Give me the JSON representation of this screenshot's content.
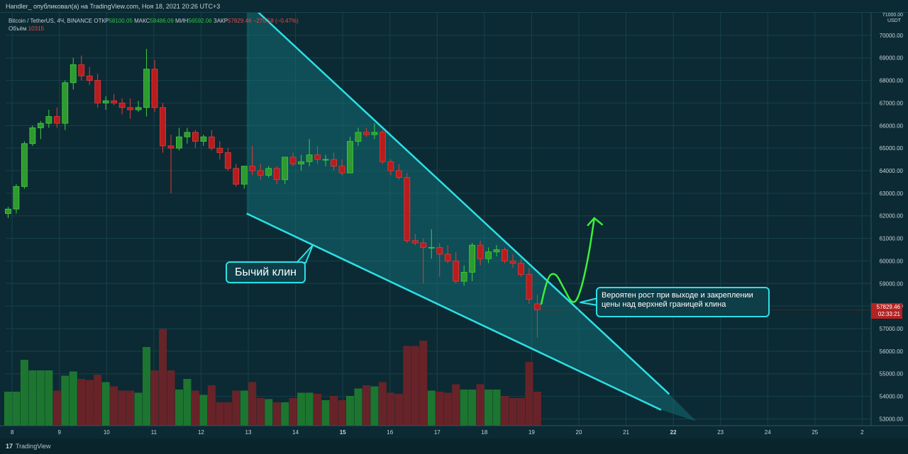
{
  "header": {
    "author_line": "Handler_ опубликовал(а) на TradingView.com, Ноя 18, 2021 20:26 UTC+3"
  },
  "legend": {
    "symbol": "Bitcoin / TetherUS, 4Ч, BINANCE",
    "open_label": "ОТКР",
    "open_value": "58100.05",
    "high_label": "МАКС",
    "high_value": "58486.09",
    "low_label": "МИН",
    "low_value": "56592.06",
    "close_label": "ЗАКР",
    "close_value": "57829.46",
    "change_value": "−270.58 (−0.47%)",
    "volume_label": "Объём",
    "volume_value": "10315"
  },
  "annotations": {
    "wedge_label": "Бычий клин",
    "note_line1": "Вероятен рост при выходе и закреплении",
    "note_line2": "цены над верхней границей клина"
  },
  "price_tag": {
    "price": "57829.46",
    "countdown": "02:33:21"
  },
  "footer": {
    "brand": "TradingView"
  },
  "colors": {
    "background": "#0c2a33",
    "bull": "#2f9a2f",
    "bear": "#b81d1d",
    "wedge_lines": "#2ce0e6",
    "wedge_fill": "#157a80",
    "projection": "#3cf03c"
  },
  "chart_data": {
    "type": "candlestick",
    "title": "Bitcoin / TetherUS, 4Ч, BINANCE",
    "currency_label_top": "71000.00",
    "currency_label_unit": "USDT",
    "y_ticks": [
      70000,
      69000,
      68000,
      67000,
      66000,
      65000,
      64000,
      63000,
      62000,
      61000,
      60000,
      59000,
      58000,
      57000,
      56000,
      55000,
      54000,
      53000
    ],
    "ylim": [
      52700,
      71000
    ],
    "x_ticks": [
      {
        "label": "8",
        "t": 0.5
      },
      {
        "label": "9",
        "t": 6.3
      },
      {
        "label": "10",
        "t": 12.1
      },
      {
        "label": "11",
        "t": 17.9
      },
      {
        "label": "12",
        "t": 23.7
      },
      {
        "label": "13",
        "t": 29.5
      },
      {
        "label": "14",
        "t": 35.3
      },
      {
        "label": "15",
        "t": 41.1
      },
      {
        "label": "16",
        "t": 46.9
      },
      {
        "label": "17",
        "t": 52.7
      },
      {
        "label": "18",
        "t": 58.5
      },
      {
        "label": "19",
        "t": 64.3
      },
      {
        "label": "20",
        "t": 70.1
      },
      {
        "label": "21",
        "t": 75.9
      },
      {
        "label": "22",
        "t": 81.7
      },
      {
        "label": "23",
        "t": 87.5
      },
      {
        "label": "24",
        "t": 93.3
      },
      {
        "label": "25",
        "t": 99.1
      },
      {
        "label": "2",
        "t": 104.9
      }
    ],
    "xlim": [
      -0.3,
      106
    ],
    "candles": [
      [
        62100,
        62400,
        61900,
        62300
      ],
      [
        62300,
        63400,
        62100,
        63300
      ],
      [
        63300,
        65300,
        63200,
        65200
      ],
      [
        65200,
        66000,
        65100,
        65900
      ],
      [
        65900,
        66200,
        65400,
        66100
      ],
      [
        66100,
        66700,
        65900,
        66400
      ],
      [
        66400,
        66800,
        65900,
        66100
      ],
      [
        66100,
        68000,
        65800,
        67900
      ],
      [
        67900,
        69000,
        67600,
        68700
      ],
      [
        68700,
        69100,
        68000,
        68200
      ],
      [
        68200,
        68600,
        67800,
        68000
      ],
      [
        68000,
        68300,
        66800,
        67000
      ],
      [
        67000,
        67300,
        66700,
        67100
      ],
      [
        67100,
        67400,
        66900,
        67000
      ],
      [
        67000,
        67200,
        66500,
        66800
      ],
      [
        66800,
        67200,
        66300,
        66700
      ],
      [
        66700,
        67100,
        66600,
        66800
      ],
      [
        66800,
        69400,
        66400,
        68500
      ],
      [
        68500,
        68900,
        66600,
        66800
      ],
      [
        66800,
        67000,
        64800,
        65100
      ],
      [
        65100,
        65600,
        63000,
        65000
      ],
      [
        65000,
        65900,
        64900,
        65500
      ],
      [
        65500,
        65900,
        65200,
        65700
      ],
      [
        65700,
        65800,
        65000,
        65300
      ],
      [
        65300,
        65600,
        65100,
        65500
      ],
      [
        65500,
        65800,
        64900,
        65000
      ],
      [
        65000,
        65300,
        64500,
        64800
      ],
      [
        64800,
        65000,
        64000,
        64100
      ],
      [
        64100,
        64300,
        63300,
        63400
      ],
      [
        63400,
        64200,
        63200,
        64200
      ],
      [
        64200,
        65100,
        63800,
        64000
      ],
      [
        64000,
        64300,
        63600,
        63800
      ],
      [
        63800,
        64200,
        63700,
        64100
      ],
      [
        64100,
        64200,
        63400,
        63600
      ],
      [
        63600,
        64500,
        63400,
        64600
      ],
      [
        64600,
        64800,
        64200,
        64300
      ],
      [
        64300,
        64700,
        64000,
        64400
      ],
      [
        64400,
        65400,
        64200,
        64700
      ],
      [
        64700,
        65100,
        64300,
        64500
      ],
      [
        64500,
        64700,
        64200,
        64500
      ],
      [
        64500,
        64800,
        64000,
        64200
      ],
      [
        64200,
        64500,
        63800,
        63900
      ],
      [
        63900,
        65500,
        63900,
        65300
      ],
      [
        65300,
        65900,
        65100,
        65700
      ],
      [
        65700,
        65900,
        65500,
        65600
      ],
      [
        65600,
        66100,
        65400,
        65700
      ],
      [
        65700,
        65800,
        64300,
        64400
      ],
      [
        64400,
        64500,
        63800,
        64000
      ],
      [
        64000,
        64300,
        63600,
        63700
      ],
      [
        63700,
        63900,
        60800,
        60900
      ],
      [
        60900,
        61200,
        60700,
        60800
      ],
      [
        60800,
        61000,
        59000,
        60600
      ],
      [
        60600,
        61400,
        60100,
        60600
      ],
      [
        60600,
        60800,
        59300,
        60300
      ],
      [
        60300,
        60700,
        59900,
        60000
      ],
      [
        60000,
        60400,
        59000,
        59100
      ],
      [
        59100,
        59800,
        58900,
        59500
      ],
      [
        59500,
        60800,
        59100,
        60700
      ],
      [
        60700,
        60900,
        59800,
        60100
      ],
      [
        60100,
        60600,
        59900,
        60400
      ],
      [
        60400,
        60700,
        60200,
        60500
      ],
      [
        60500,
        60600,
        59900,
        60000
      ],
      [
        60000,
        60300,
        59700,
        59900
      ],
      [
        59900,
        60100,
        59300,
        59400
      ],
      [
        59400,
        59700,
        58100,
        58300
      ],
      [
        58100,
        58500,
        56600,
        57830
      ]
    ],
    "volume_series_name": "Объём",
    "volumes": [
      0.32,
      0.32,
      0.62,
      0.52,
      0.52,
      0.52,
      0.33,
      0.47,
      0.51,
      0.44,
      0.43,
      0.48,
      0.41,
      0.37,
      0.33,
      0.33,
      0.31,
      0.74,
      0.52,
      0.91,
      0.52,
      0.34,
      0.44,
      0.33,
      0.29,
      0.38,
      0.22,
      0.22,
      0.33,
      0.33,
      0.41,
      0.26,
      0.25,
      0.22,
      0.22,
      0.26,
      0.31,
      0.31,
      0.3,
      0.24,
      0.28,
      0.24,
      0.28,
      0.35,
      0.38,
      0.37,
      0.41,
      0.31,
      0.3,
      0.75,
      0.75,
      0.8,
      0.33,
      0.32,
      0.31,
      0.39,
      0.34,
      0.34,
      0.39,
      0.34,
      0.34,
      0.28,
      0.26,
      0.26,
      0.6,
      0.32
    ],
    "wedge": {
      "upper_line": [
        [
          29.3,
          71500
        ],
        [
          81.2,
          54100
        ]
      ],
      "lower_line": [
        [
          29.3,
          62100
        ],
        [
          80.2,
          53400
        ]
      ],
      "apex": [
        84.5,
        52900
      ],
      "fill_start": [
        29.3,
        71500
      ]
    },
    "projection_path": [
      [
        65.5,
        58100
      ],
      [
        66.2,
        59300
      ],
      [
        67.2,
        59500
      ],
      [
        68.1,
        58900
      ],
      [
        69.4,
        58000
      ],
      [
        70.3,
        58600
      ],
      [
        71.3,
        60200
      ],
      [
        72.0,
        61900
      ]
    ]
  }
}
